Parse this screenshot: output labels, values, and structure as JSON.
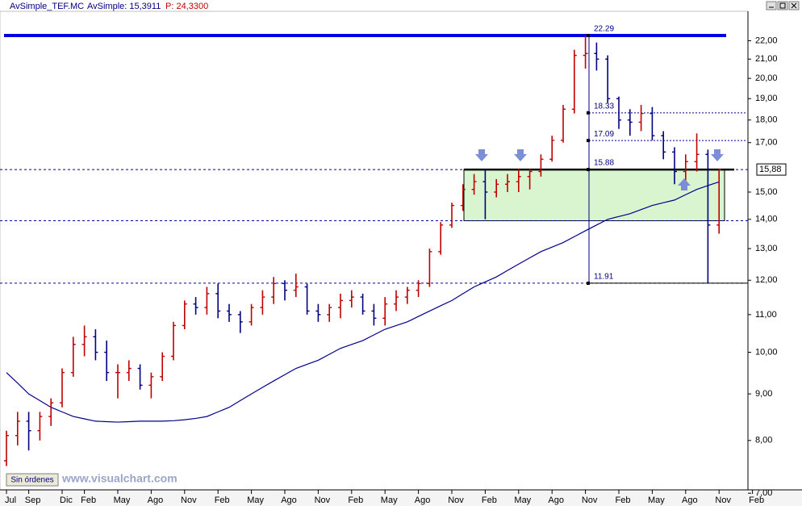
{
  "chart_data": {
    "type": "ohlc",
    "symbol": "AvSimple_TEF.MC",
    "indicator_label": "AvSimple: 15,3911",
    "price_label": "P: 24,3300",
    "orders_button": "Sin órdenes",
    "watermark": "www.visualchart.com",
    "log_scale": true,
    "up_color": "#c00000",
    "down_color": "#000080",
    "categories": [
      "Jul",
      null,
      "Sep",
      null,
      null,
      "Dic",
      null,
      "Feb",
      null,
      null,
      "May",
      null,
      null,
      "Ago",
      null,
      null,
      "Nov",
      null,
      null,
      "Feb",
      null,
      null,
      "May",
      null,
      null,
      "Ago",
      null,
      null,
      "Nov",
      null,
      null,
      "Feb",
      null,
      null,
      "May",
      null,
      null,
      "Ago",
      null,
      null,
      "Nov",
      null,
      null,
      "Feb",
      null,
      null,
      "May",
      null,
      null,
      "Ago",
      null,
      null,
      "Nov",
      null,
      null,
      "Feb",
      null,
      null,
      "May",
      null,
      null,
      "Ago",
      null,
      null,
      "Nov",
      null,
      null,
      "Feb"
    ],
    "open": [
      7.6,
      8.1,
      8.4,
      8.2,
      8.5,
      8.8,
      9.5,
      10.2,
      10.4,
      10.0,
      9.5,
      9.5,
      9.6,
      9.2,
      9.4,
      9.9,
      10.7,
      11.3,
      11.2,
      11.6,
      11.1,
      11.0,
      10.8,
      11.2,
      11.5,
      11.9,
      11.7,
      11.8,
      11.1,
      11.0,
      11.2,
      11.4,
      11.5,
      11.1,
      10.9,
      11.3,
      11.5,
      11.7,
      11.9,
      12.9,
      13.8,
      14.5,
      15.1,
      15.4,
      15.0,
      15.3,
      15.4,
      15.6,
      15.8,
      16.3,
      17.1,
      18.5,
      21.2,
      21.3,
      21.0,
      19.0,
      18.0,
      17.9,
      18.3,
      17.3,
      16.6,
      15.8,
      16.2,
      16.5,
      13.8,
      null,
      null,
      null
    ],
    "high": [
      8.2,
      8.6,
      8.6,
      8.6,
      8.9,
      9.6,
      10.4,
      10.7,
      10.6,
      10.3,
      9.7,
      9.8,
      9.7,
      9.5,
      10.0,
      10.8,
      11.4,
      11.5,
      11.8,
      11.9,
      11.3,
      11.1,
      11.3,
      11.7,
      12.1,
      12.0,
      12.2,
      11.9,
      11.3,
      11.3,
      11.6,
      11.7,
      11.6,
      11.3,
      11.5,
      11.7,
      11.8,
      12.0,
      13.0,
      13.9,
      14.6,
      15.3,
      15.7,
      15.9,
      15.5,
      15.7,
      15.9,
      15.9,
      16.5,
      17.3,
      18.7,
      21.5,
      22.29,
      21.9,
      21.2,
      19.1,
      18.5,
      18.7,
      18.6,
      17.5,
      16.8,
      16.5,
      17.4,
      16.7,
      15.9,
      null,
      null,
      null
    ],
    "low": [
      7.5,
      7.9,
      7.8,
      8.0,
      8.3,
      8.7,
      9.4,
      9.9,
      9.8,
      9.3,
      8.9,
      9.3,
      9.1,
      8.9,
      9.3,
      9.8,
      10.6,
      11.0,
      11.0,
      10.9,
      10.8,
      10.5,
      10.7,
      11.0,
      11.3,
      11.4,
      11.5,
      11.0,
      10.8,
      10.8,
      10.9,
      11.2,
      11.0,
      10.7,
      10.7,
      11.1,
      11.3,
      11.5,
      11.8,
      12.8,
      13.7,
      14.3,
      14.9,
      14.0,
      14.8,
      15.0,
      15.0,
      15.1,
      15.6,
      16.2,
      17.0,
      18.3,
      20.5,
      20.4,
      18.8,
      17.6,
      17.3,
      17.5,
      17.1,
      16.3,
      15.3,
      15.4,
      15.8,
      11.91,
      13.5,
      null,
      null,
      null
    ],
    "close": [
      8.1,
      8.4,
      8.2,
      8.5,
      8.8,
      9.5,
      10.2,
      10.4,
      10.0,
      9.5,
      9.5,
      9.6,
      9.2,
      9.4,
      9.9,
      10.7,
      11.3,
      11.2,
      11.6,
      11.1,
      11.0,
      10.8,
      11.2,
      11.5,
      11.9,
      11.7,
      11.8,
      11.1,
      11.0,
      11.2,
      11.4,
      11.5,
      11.1,
      10.9,
      11.3,
      11.5,
      11.7,
      11.9,
      12.9,
      13.8,
      14.5,
      15.1,
      15.4,
      15.0,
      15.3,
      15.4,
      15.6,
      15.8,
      16.3,
      17.1,
      18.5,
      21.2,
      21.3,
      21.0,
      19.0,
      18.0,
      17.9,
      18.3,
      17.3,
      16.6,
      15.8,
      16.2,
      16.5,
      13.8,
      15.88,
      null,
      null,
      null
    ],
    "moving_average": {
      "name": "AvSimple",
      "color": "#00008b",
      "values": [
        9.5,
        9.25,
        9.0,
        8.85,
        8.7,
        8.6,
        8.5,
        8.45,
        8.4,
        8.39,
        8.38,
        8.39,
        8.4,
        8.4,
        8.4,
        8.41,
        8.43,
        8.46,
        8.5,
        8.6,
        8.7,
        8.85,
        9.0,
        9.15,
        9.3,
        9.45,
        9.6,
        9.7,
        9.8,
        9.95,
        10.1,
        10.2,
        10.3,
        10.45,
        10.6,
        10.7,
        10.8,
        10.95,
        11.1,
        11.25,
        11.4,
        11.6,
        11.8,
        11.95,
        12.1,
        12.3,
        12.5,
        12.7,
        12.9,
        13.05,
        13.2,
        13.4,
        13.6,
        13.8,
        14.0,
        14.1,
        14.2,
        14.35,
        14.5,
        14.6,
        14.7,
        14.9,
        15.1,
        15.25,
        15.3911,
        null,
        null,
        null
      ]
    },
    "levels": [
      22.29,
      18.33,
      17.09,
      15.88,
      11.91
    ],
    "zone_bottom": 13.95,
    "zone_color": "#d8f5d0",
    "last_price": {
      "value": 15.88,
      "label": "15,88"
    },
    "ylim": [
      7.06,
      23.7
    ],
    "yticks": [
      {
        "value": 7,
        "label": "7,00"
      },
      {
        "value": 8,
        "label": "8,00"
      },
      {
        "value": 9,
        "label": "9,00"
      },
      {
        "value": 10,
        "label": "10,00"
      },
      {
        "value": 11,
        "label": "11,00"
      },
      {
        "value": 12,
        "label": "12,00"
      },
      {
        "value": 13,
        "label": "13,00"
      },
      {
        "value": 14,
        "label": "14,00"
      },
      {
        "value": 15,
        "label": "15,00"
      },
      {
        "value": 17,
        "label": "17,00"
      },
      {
        "value": 18,
        "label": "18,00"
      },
      {
        "value": 19,
        "label": "19,00"
      },
      {
        "value": 20,
        "label": "20,00"
      },
      {
        "value": 21,
        "label": "21,00"
      },
      {
        "value": 22,
        "label": "22,00"
      }
    ]
  }
}
